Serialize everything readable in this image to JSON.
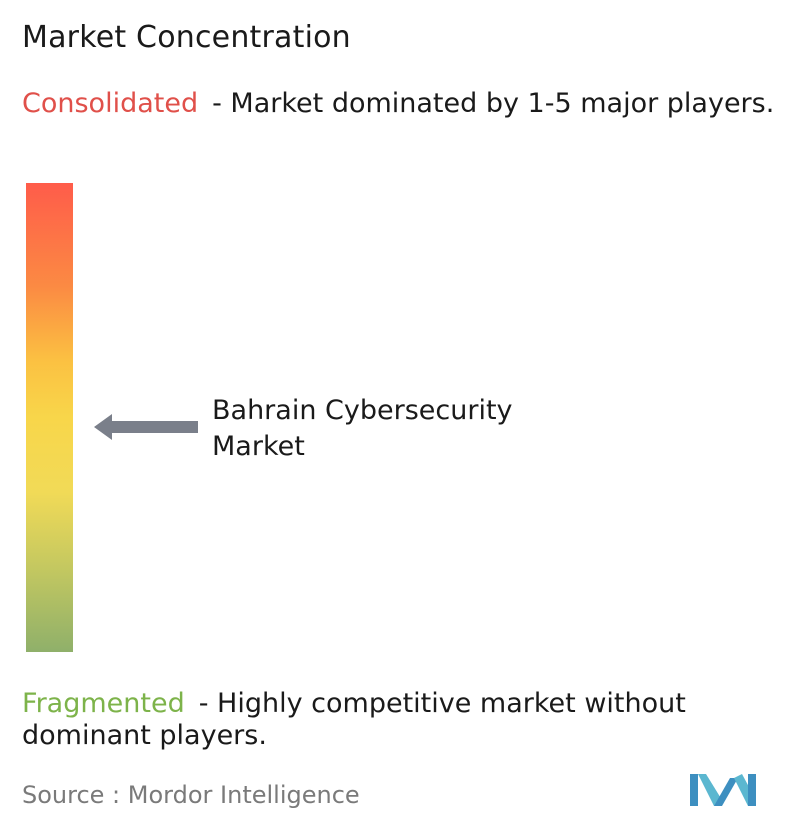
{
  "title": "Market Concentration",
  "consolidated": {
    "label": "Consolidated",
    "description": "- Market dominated by 1-5 major players."
  },
  "fragmented": {
    "label": "Fragmented",
    "description": "- Highly competitive market without dominant players."
  },
  "marker": {
    "line1": "Bahrain Cybersecurity",
    "line2": "Market"
  },
  "source": "Source :  Mordor Intelligence",
  "colors": {
    "consolidated": "#e0504a",
    "fragmented": "#7db34a",
    "arrow": "#7a7f8a",
    "logo": "#5bb7d0"
  },
  "icons": {
    "arrow": "arrow-left-icon",
    "logo": "mordor-intelligence-logo-icon"
  }
}
